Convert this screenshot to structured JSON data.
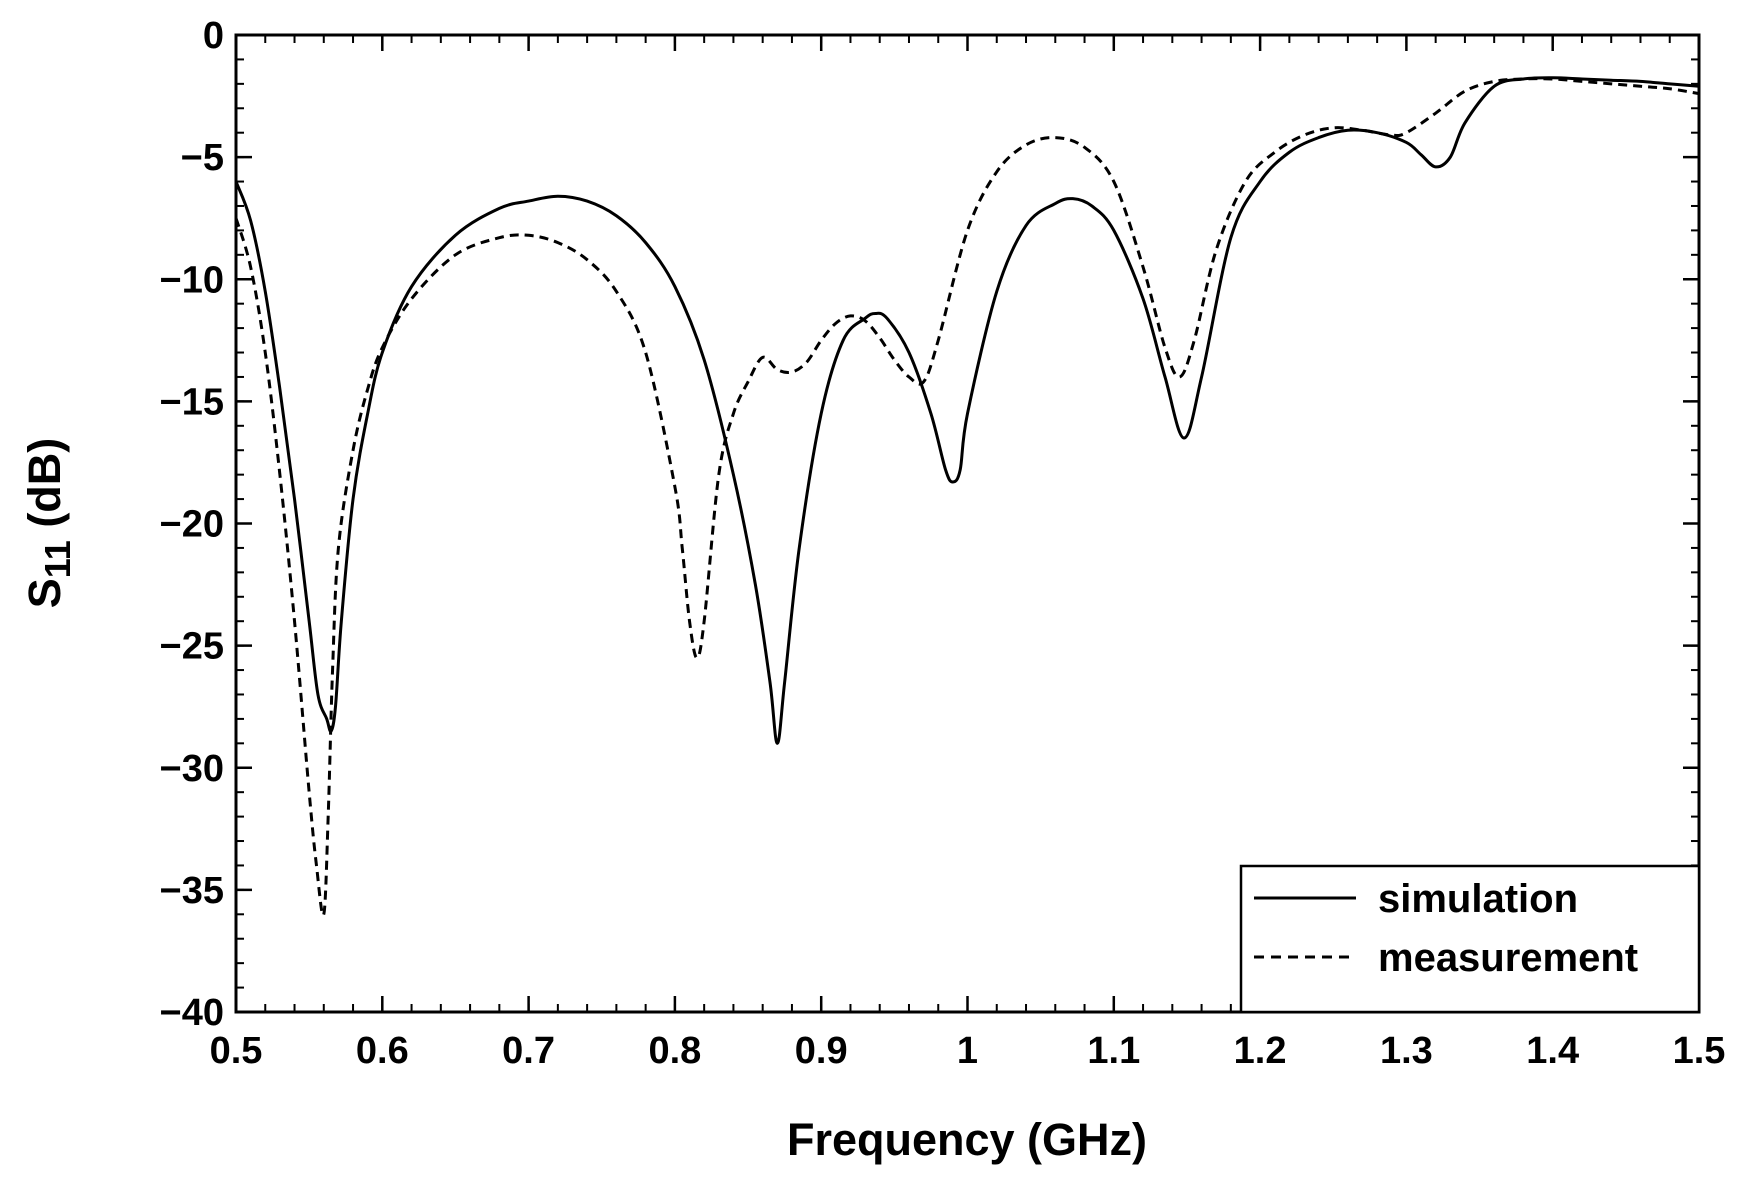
{
  "chart_data": {
    "type": "line",
    "title": "",
    "xlabel": "Frequency (GHz)",
    "ylabel_main": "S",
    "ylabel_sub": "11",
    "ylabel_suffix": " (dB)",
    "xlim": [
      0.5,
      1.5
    ],
    "ylim": [
      -40,
      0
    ],
    "x_major_ticks": [
      0.5,
      0.6,
      0.7,
      0.8,
      0.9,
      1.0,
      1.1,
      1.2,
      1.3,
      1.4,
      1.5
    ],
    "x_tick_labels": [
      "0.5",
      "0.6",
      "0.7",
      "0.8",
      "0.9",
      "1",
      "1.1",
      "1.2",
      "1.3",
      "1.4",
      "1.5"
    ],
    "x_minor_step": 0.02,
    "y_major_ticks": [
      0,
      -5,
      -10,
      -15,
      -20,
      -25,
      -30,
      -35,
      -40
    ],
    "y_tick_labels": [
      "0",
      "−5",
      "−10",
      "−15",
      "−20",
      "−25",
      "−30",
      "−35",
      "−40"
    ],
    "y_minor_step": 1,
    "grid": false,
    "legend_position": "bottom-right",
    "series": [
      {
        "name": "simulation",
        "style": "solid",
        "x": [
          0.5,
          0.51,
          0.52,
          0.53,
          0.54,
          0.55,
          0.556,
          0.562,
          0.565,
          0.568,
          0.572,
          0.58,
          0.59,
          0.6,
          0.62,
          0.65,
          0.68,
          0.7,
          0.72,
          0.74,
          0.76,
          0.78,
          0.8,
          0.82,
          0.84,
          0.855,
          0.865,
          0.87,
          0.875,
          0.885,
          0.9,
          0.915,
          0.93,
          0.937,
          0.945,
          0.96,
          0.975,
          0.985,
          0.99,
          0.995,
          1.0,
          1.02,
          1.04,
          1.06,
          1.072,
          1.085,
          1.1,
          1.12,
          1.135,
          1.148,
          1.16,
          1.18,
          1.2,
          1.22,
          1.24,
          1.26,
          1.28,
          1.3,
          1.31,
          1.32,
          1.33,
          1.34,
          1.36,
          1.38,
          1.4,
          1.42,
          1.44,
          1.46,
          1.48,
          1.5
        ],
        "y": [
          -6.0,
          -7.6,
          -10.5,
          -14.5,
          -19.0,
          -24.0,
          -27.0,
          -28.0,
          -28.5,
          -27.5,
          -24.0,
          -19.0,
          -15.5,
          -13.0,
          -10.3,
          -8.2,
          -7.1,
          -6.8,
          -6.6,
          -6.8,
          -7.4,
          -8.5,
          -10.3,
          -13.3,
          -18.0,
          -22.5,
          -26.5,
          -29.0,
          -26.5,
          -21.0,
          -15.5,
          -12.5,
          -11.6,
          -11.4,
          -11.6,
          -13.0,
          -15.5,
          -17.8,
          -18.3,
          -17.8,
          -15.5,
          -10.5,
          -7.8,
          -6.9,
          -6.7,
          -7.0,
          -8.0,
          -10.8,
          -14.0,
          -16.5,
          -14.0,
          -8.3,
          -6.0,
          -4.8,
          -4.2,
          -3.9,
          -4.0,
          -4.4,
          -4.9,
          -5.4,
          -5.0,
          -3.6,
          -2.1,
          -1.8,
          -1.75,
          -1.8,
          -1.85,
          -1.9,
          -2.0,
          -2.1
        ]
      },
      {
        "name": "measurement",
        "style": "dashed",
        "x": [
          0.5,
          0.51,
          0.52,
          0.53,
          0.54,
          0.55,
          0.555,
          0.56,
          0.563,
          0.566,
          0.57,
          0.58,
          0.59,
          0.6,
          0.62,
          0.65,
          0.68,
          0.7,
          0.72,
          0.74,
          0.76,
          0.78,
          0.8,
          0.805,
          0.81,
          0.815,
          0.82,
          0.83,
          0.84,
          0.85,
          0.86,
          0.87,
          0.88,
          0.89,
          0.9,
          0.91,
          0.92,
          0.93,
          0.94,
          0.95,
          0.96,
          0.97,
          0.98,
          1.0,
          1.02,
          1.04,
          1.06,
          1.08,
          1.1,
          1.12,
          1.135,
          1.145,
          1.155,
          1.17,
          1.19,
          1.21,
          1.23,
          1.25,
          1.27,
          1.29,
          1.3,
          1.32,
          1.34,
          1.36,
          1.38,
          1.4,
          1.42,
          1.44,
          1.46,
          1.48,
          1.5
        ],
        "y": [
          -7.5,
          -9.5,
          -13.0,
          -18.0,
          -24.0,
          -31.0,
          -34.0,
          -36.0,
          -32.0,
          -26.0,
          -21.0,
          -17.0,
          -14.5,
          -12.8,
          -10.8,
          -9.0,
          -8.3,
          -8.2,
          -8.5,
          -9.2,
          -10.5,
          -13.0,
          -18.5,
          -21.0,
          -24.0,
          -25.5,
          -24.0,
          -18.0,
          -15.5,
          -14.2,
          -13.2,
          -13.7,
          -13.8,
          -13.4,
          -12.5,
          -11.8,
          -11.5,
          -11.7,
          -12.4,
          -13.3,
          -14.0,
          -14.2,
          -12.5,
          -8.0,
          -5.6,
          -4.5,
          -4.2,
          -4.6,
          -6.0,
          -9.5,
          -12.8,
          -14.0,
          -12.5,
          -8.8,
          -6.0,
          -4.8,
          -4.1,
          -3.8,
          -3.9,
          -4.1,
          -4.0,
          -3.2,
          -2.3,
          -1.9,
          -1.8,
          -1.8,
          -1.9,
          -2.0,
          -2.1,
          -2.2,
          -2.4
        ]
      }
    ]
  }
}
